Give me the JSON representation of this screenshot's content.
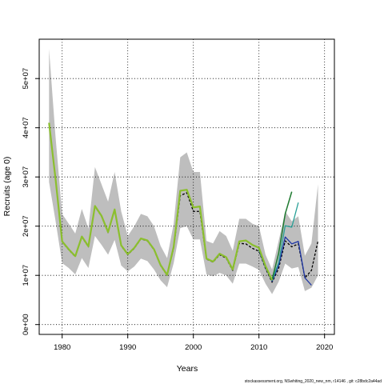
{
  "chart_data": {
    "type": "line",
    "xlabel": "Years",
    "ylabel": "Recruits (age 0)",
    "xlim": [
      1976.5,
      2021.5
    ],
    "ylim": [
      -2000000,
      58000000
    ],
    "x_ticks": [
      1980,
      1990,
      2000,
      2010,
      2020
    ],
    "x_tick_labels": [
      "1980",
      "1990",
      "2000",
      "2010",
      "2020"
    ],
    "y_ticks": [
      0,
      10000000,
      20000000,
      30000000,
      40000000,
      50000000
    ],
    "y_tick_labels": [
      "0e+00",
      "1e+07",
      "2e+07",
      "3e+07",
      "4e+07",
      "5e+07"
    ],
    "grid": "dotted",
    "confidence_band": {
      "x": [
        1978,
        1979,
        1980,
        1981,
        1982,
        1983,
        1984,
        1985,
        1986,
        1987,
        1988,
        1989,
        1990,
        1991,
        1992,
        1993,
        1994,
        1995,
        1996,
        1997,
        1998,
        1999,
        2000,
        2001,
        2002,
        2003,
        2004,
        2005,
        2006,
        2007,
        2008,
        2009,
        2010,
        2011,
        2012,
        2013,
        2014,
        2015,
        2016,
        2017,
        2018,
        2019
      ],
      "lower": [
        29000000,
        21000000,
        12500000,
        11500000,
        10200000,
        13500000,
        11500000,
        18000000,
        16200000,
        14200000,
        17200000,
        12000000,
        10800000,
        11800000,
        13400000,
        12900000,
        11200000,
        9000000,
        7600000,
        12500000,
        19600000,
        20000000,
        17300000,
        17300000,
        10200000,
        9800000,
        10500000,
        10000000,
        8300000,
        12400000,
        12400000,
        11800000,
        11100000,
        8300000,
        6200000,
        8700000,
        12400000,
        11400000,
        11700000,
        6800000,
        7500000,
        10000000
      ],
      "upper": [
        56000000,
        38000000,
        22500000,
        20500000,
        18500000,
        23500000,
        19500000,
        32000000,
        28500000,
        25000000,
        31000000,
        23000000,
        18000000,
        20000000,
        22500000,
        22000000,
        20000000,
        16000000,
        13500000,
        20500000,
        34000000,
        35000000,
        31000000,
        31000000,
        17000000,
        16500000,
        19000000,
        18000000,
        15000000,
        21500000,
        21500000,
        20500000,
        20000000,
        14200000,
        11200000,
        17000000,
        23000000,
        21000000,
        22000000,
        14000000,
        16500000,
        28500000
      ]
    },
    "series": [
      {
        "color": "#000000",
        "dash": "3,2",
        "width": 1.3,
        "x": [
          1978,
          1979,
          1980,
          1981,
          1982,
          1983,
          1984,
          1985,
          1986,
          1987,
          1988,
          1989,
          1990,
          1991,
          1992,
          1993,
          1994,
          1995,
          1996,
          1997,
          1998,
          1999,
          2000,
          2001,
          2002,
          2003,
          2004,
          2005,
          2006,
          2007,
          2008,
          2009,
          2010,
          2011,
          2012,
          2013,
          2014,
          2015,
          2016,
          2017,
          2018,
          2019
        ],
        "y": [
          41000000,
          29500000,
          16800000,
          15200000,
          13800000,
          17800000,
          15800000,
          24000000,
          22000000,
          18700000,
          23300000,
          16000000,
          14200000,
          15500000,
          17400000,
          17000000,
          15200000,
          12000000,
          10000000,
          15600000,
          26200000,
          26800000,
          23000000,
          23000000,
          13300000,
          12700000,
          14200000,
          13500000,
          11000000,
          16500000,
          16400000,
          15500000,
          14900000,
          11400000,
          8600000,
          11400000,
          17000000,
          15800000,
          16400000,
          9500000,
          11000000,
          17000000
        ]
      },
      {
        "color": "#1e36a4",
        "dash": "",
        "width": 1.3,
        "x": [
          2010,
          2011,
          2012,
          2013,
          2014,
          2015,
          2016,
          2017,
          2018
        ],
        "y": [
          15100000,
          11600000,
          8800000,
          12000000,
          17800000,
          16400000,
          16900000,
          9500000,
          8000000
        ]
      },
      {
        "color": "#2aa198",
        "dash": "",
        "width": 1.3,
        "x": [
          2010,
          2011,
          2012,
          2013,
          2014,
          2015,
          2016
        ],
        "y": [
          15200000,
          11700000,
          9000000,
          12600000,
          20100000,
          19800000,
          24800000
        ]
      },
      {
        "color": "#1e7a30",
        "dash": "",
        "width": 1.5,
        "x": [
          2010,
          2011,
          2012,
          2013,
          2014,
          2015
        ],
        "y": [
          15300000,
          11800000,
          9100000,
          14500000,
          22500000,
          27000000
        ]
      },
      {
        "color": "#8bbf2e",
        "dash": "",
        "width": 2.2,
        "x": [
          1978,
          1979,
          1980,
          1981,
          1982,
          1983,
          1984,
          1985,
          1986,
          1987,
          1988,
          1989,
          1990,
          1991,
          1992,
          1993,
          1994,
          1995,
          1996,
          1997,
          1998,
          1999,
          2000,
          2001,
          2002,
          2003,
          2004,
          2005,
          2006,
          2007,
          2008,
          2009,
          2010,
          2011,
          2012
        ],
        "y": [
          41000000,
          29500000,
          16900000,
          15300000,
          13900000,
          17900000,
          15900000,
          24100000,
          22100000,
          18800000,
          23400000,
          16100000,
          14300000,
          15600000,
          17500000,
          17100000,
          15300000,
          12100000,
          10100000,
          15800000,
          27200000,
          27400000,
          23800000,
          24000000,
          13400000,
          12800000,
          14400000,
          13700000,
          11200000,
          16900000,
          17100000,
          16200000,
          15600000,
          11900000,
          9000000
        ]
      }
    ]
  },
  "footer_text": "stockassessment.org,  NSwhiting_2020_new_nm,  r14146  ,  git:  c28bdc2a44ad"
}
